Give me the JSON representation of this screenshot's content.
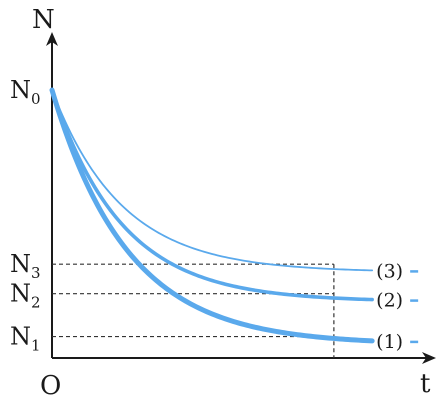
{
  "chart_data": {
    "type": "line",
    "title": "",
    "axes": {
      "y_label": "N",
      "x_label": "t",
      "origin_label": "O"
    },
    "y_ticks": [
      {
        "main": "N",
        "sub": "0"
      },
      {
        "main": "N",
        "sub": "3"
      },
      {
        "main": "N",
        "sub": "2"
      },
      {
        "main": "N",
        "sub": "1"
      }
    ],
    "y_values": {
      "N0": 1.0,
      "N3": 0.35,
      "N2": 0.24,
      "N1": 0.08
    },
    "x_range": [
      0,
      1.0
    ],
    "y_range": [
      0,
      1.0
    ],
    "marked_time": 0.81,
    "grid": false,
    "legend": "inline labels at right end of curves",
    "color": "#5aa9ec",
    "series": [
      {
        "name": "(3)",
        "asymptote": 0.32,
        "k": 5.0,
        "x_end": 0.92,
        "thickness": "thin"
      },
      {
        "name": "(2)",
        "asymptote": 0.21,
        "k": 5.0,
        "x_end": 0.92,
        "thickness": "medium"
      },
      {
        "name": "(1)",
        "asymptote": 0.05,
        "k": 4.6,
        "x_end": 0.92,
        "thickness": "thick"
      }
    ]
  }
}
